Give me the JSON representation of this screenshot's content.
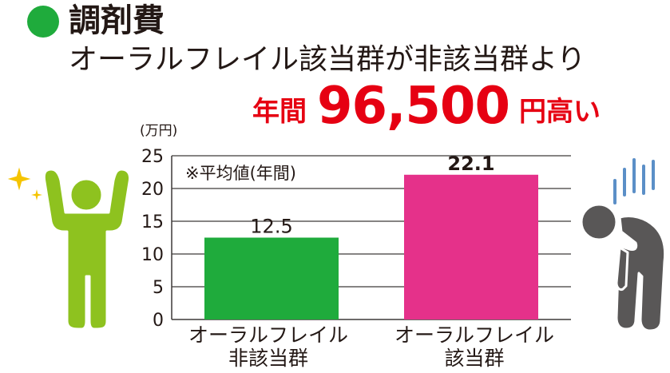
{
  "header": {
    "title": "調剤費",
    "subtitle": "オーラルフレイル該当群が非該当群より",
    "highlight_prefix": "年間",
    "highlight_number": "96,500",
    "highlight_suffix": "円高い",
    "bullet_color": "#1fab3c",
    "highlight_color": "#e60012"
  },
  "note": "※平均値(年間)",
  "chart_data": {
    "type": "bar",
    "unit": "(万円)",
    "categories": [
      "オーラルフレイル\n非該当群",
      "オーラルフレイル\n該当群"
    ],
    "values": [
      12.5,
      22.1
    ],
    "value_labels": [
      "12.5",
      "22.1"
    ],
    "colors": [
      "#1fab3c",
      "#e5318a"
    ],
    "yticks": [
      0,
      5,
      10,
      15,
      20,
      25
    ],
    "ylim": [
      0,
      25
    ],
    "grid": true
  },
  "icons": {
    "left": "healthy-person-icon",
    "left_color": "#8ec21f",
    "sparkle_color": "#f5c400",
    "right": "tired-person-icon",
    "right_color": "#595757",
    "lines_color": "#5b8fc7"
  }
}
